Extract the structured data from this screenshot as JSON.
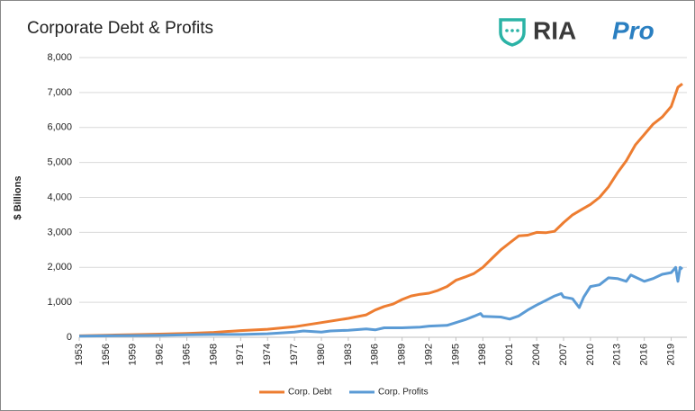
{
  "logo": {
    "brand": "RIA",
    "product": "Pro"
  },
  "chart_data": {
    "type": "line",
    "title": "Corporate Debt & Profits",
    "y_label": "$ Billions",
    "xlim": [
      1953,
      2020.75
    ],
    "xticks": [
      1953,
      1956,
      1959,
      1962,
      1965,
      1968,
      1971,
      1974,
      1977,
      1980,
      1983,
      1986,
      1989,
      1992,
      1995,
      1998,
      2001,
      2004,
      2007,
      2010,
      2013,
      2016,
      2019
    ],
    "ylim": [
      0,
      8000
    ],
    "yticks": [
      0,
      {
        "value": 1000,
        "label": "1,000"
      },
      {
        "value": 2000,
        "label": "2,000"
      },
      {
        "value": 3000,
        "label": "3,000"
      },
      {
        "value": 4000,
        "label": "4,000"
      },
      {
        "value": 5000,
        "label": "5,000"
      },
      {
        "value": 6000,
        "label": "6,000"
      },
      {
        "value": 7000,
        "label": "7,000"
      },
      {
        "value": 8000,
        "label": "8,000"
      }
    ],
    "grid": true,
    "legend": "bottom",
    "series": [
      {
        "name": "Corp. Debt",
        "color": "#ed7d31",
        "x": [
          1953,
          1956,
          1959,
          1962,
          1965,
          1968,
          1971,
          1974,
          1977,
          1980,
          1983,
          1985,
          1986,
          1987,
          1988,
          1989,
          1990,
          1991,
          1992,
          1993,
          1994,
          1995,
          1996,
          1997,
          1998,
          1999,
          2000,
          2001,
          2002,
          2003,
          2004,
          2005,
          2006,
          2007,
          2008,
          2009,
          2010,
          2011,
          2012,
          2013,
          2014,
          2015,
          2016,
          2017,
          2018,
          2019,
          2019.75,
          2020.25
        ],
        "values": [
          40,
          60,
          75,
          90,
          110,
          140,
          190,
          230,
          300,
          420,
          540,
          640,
          780,
          880,
          950,
          1080,
          1180,
          1230,
          1260,
          1340,
          1450,
          1630,
          1720,
          1820,
          2000,
          2250,
          2500,
          2700,
          2900,
          2920,
          3000,
          2990,
          3030,
          3280,
          3500,
          3650,
          3800,
          4000,
          4300,
          4700,
          5050,
          5500,
          5800,
          6100,
          6300,
          6600,
          7150,
          7250
        ]
      },
      {
        "name": "Corp. Profits",
        "color": "#5b9bd5",
        "x": [
          1953,
          1956,
          1959,
          1962,
          1965,
          1968,
          1971,
          1974,
          1977,
          1978,
          1980,
          1981,
          1983,
          1985,
          1986,
          1987,
          1989,
          1991,
          1992,
          1994,
          1995,
          1996,
          1997,
          1997.75,
          1998,
          1999,
          2000,
          2001,
          2002,
          2003,
          2004,
          2005,
          2006,
          2006.75,
          2007,
          2008,
          2008.75,
          2009.25,
          2010,
          2011,
          2012,
          2013,
          2014,
          2014.5,
          2015,
          2016,
          2017,
          2018,
          2019,
          2019.5,
          2019.75,
          2020,
          2020.25
        ],
        "values": [
          30,
          40,
          50,
          55,
          70,
          80,
          80,
          100,
          150,
          180,
          150,
          180,
          200,
          240,
          210,
          270,
          270,
          290,
          320,
          340,
          420,
          500,
          600,
          680,
          600,
          590,
          580,
          520,
          610,
          780,
          920,
          1050,
          1180,
          1250,
          1150,
          1100,
          850,
          1150,
          1450,
          1500,
          1700,
          1680,
          1600,
          1780,
          1720,
          1600,
          1680,
          1800,
          1850,
          2000,
          1600,
          2000,
          1950
        ]
      }
    ]
  }
}
